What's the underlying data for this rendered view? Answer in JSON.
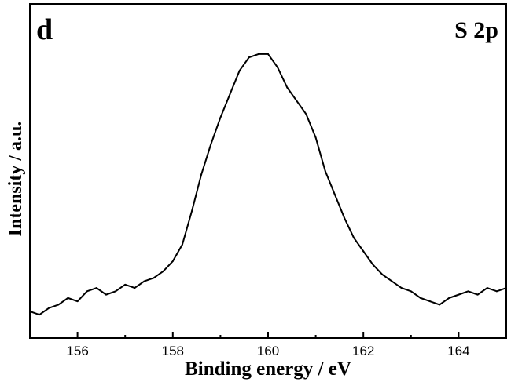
{
  "chart_data": {
    "type": "line",
    "panel_label": "d",
    "annotation": "S 2p",
    "xlabel": "Binding energy / eV",
    "ylabel": "Intensity / a.u.",
    "xlim": [
      155,
      165
    ],
    "ylim": [
      0,
      1
    ],
    "xticks": [
      156,
      158,
      160,
      162,
      164
    ],
    "x": [
      155.0,
      155.2,
      155.4,
      155.6,
      155.8,
      156.0,
      156.2,
      156.4,
      156.6,
      156.8,
      157.0,
      157.2,
      157.4,
      157.6,
      157.8,
      158.0,
      158.2,
      158.4,
      158.6,
      158.8,
      159.0,
      159.2,
      159.4,
      159.6,
      159.8,
      160.0,
      160.2,
      160.4,
      160.6,
      160.8,
      161.0,
      161.2,
      161.4,
      161.6,
      161.8,
      162.0,
      162.2,
      162.4,
      162.6,
      162.8,
      163.0,
      163.2,
      163.4,
      163.6,
      163.8,
      164.0,
      164.2,
      164.4,
      164.6,
      164.8,
      165.0
    ],
    "series": [
      {
        "values": [
          0.08,
          0.07,
          0.09,
          0.1,
          0.12,
          0.11,
          0.14,
          0.15,
          0.13,
          0.14,
          0.16,
          0.15,
          0.17,
          0.18,
          0.2,
          0.23,
          0.28,
          0.38,
          0.49,
          0.58,
          0.66,
          0.73,
          0.8,
          0.84,
          0.85,
          0.85,
          0.81,
          0.75,
          0.71,
          0.67,
          0.6,
          0.5,
          0.43,
          0.36,
          0.3,
          0.26,
          0.22,
          0.19,
          0.17,
          0.15,
          0.14,
          0.12,
          0.11,
          0.1,
          0.12,
          0.13,
          0.14,
          0.13,
          0.15,
          0.14,
          0.15
        ]
      }
    ]
  }
}
